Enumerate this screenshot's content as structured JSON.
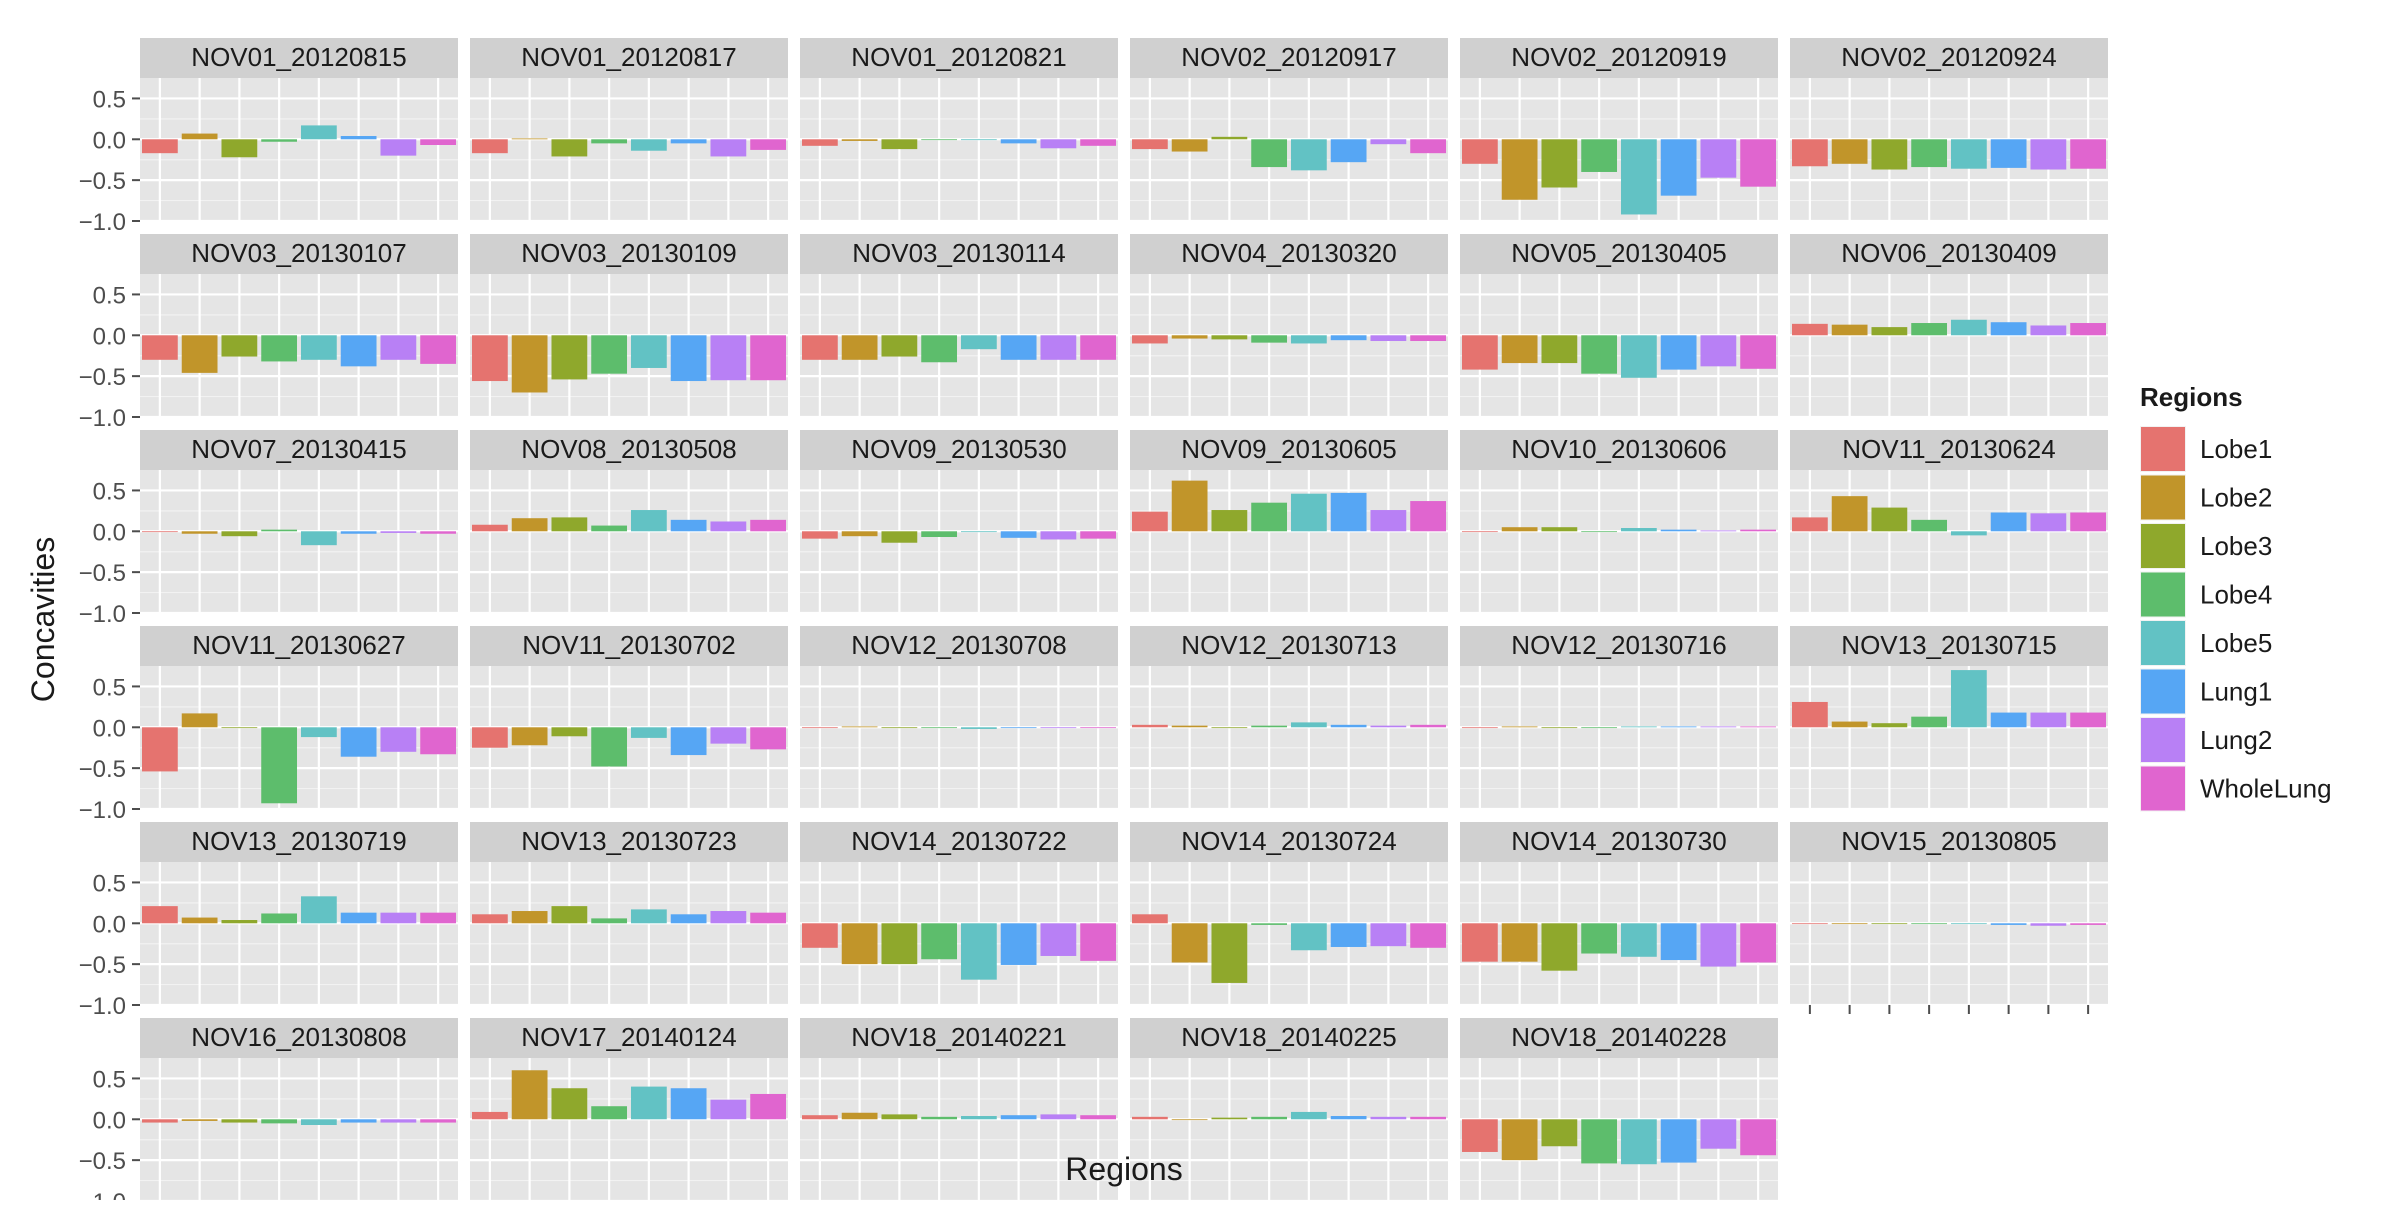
{
  "chart_data": {
    "type": "bar",
    "faceted": true,
    "xlabel": "Regions",
    "ylabel": "Concavities",
    "ylim": [
      -1.0,
      0.75
    ],
    "yticks": [
      -1.0,
      -0.5,
      0.0,
      0.5
    ],
    "ytick_labels": [
      "−1.0",
      "−0.5",
      "0.0",
      "0.5"
    ],
    "x_tick_labels_shown": false,
    "grid": true,
    "legend": {
      "title": "Regions",
      "position": "right",
      "entries": [
        "Lobe1",
        "Lobe2",
        "Lobe3",
        "Lobe4",
        "Lobe5",
        "Lung1",
        "Lung2",
        "WholeLung"
      ]
    },
    "colors": {
      "Lobe1": "#e5736f",
      "Lobe2": "#c1952a",
      "Lobe3": "#8fa82c",
      "Lobe4": "#5dbd6c",
      "Lobe5": "#62c2c4",
      "Lung1": "#56a6f4",
      "Lung2": "#b880f5",
      "WholeLung": "#e065cf",
      "panel_bg": "#e5e5e5",
      "strip_bg": "#d0d0d0",
      "grid": "#ffffff"
    },
    "categories": [
      "Lobe1",
      "Lobe2",
      "Lobe3",
      "Lobe4",
      "Lobe5",
      "Lung1",
      "Lung2",
      "WholeLung"
    ],
    "ncol": 6,
    "panels": [
      {
        "title": "NOV01_20120815",
        "values": [
          -0.17,
          0.07,
          -0.22,
          -0.03,
          0.17,
          0.04,
          -0.2,
          -0.07
        ]
      },
      {
        "title": "NOV01_20120817",
        "values": [
          -0.17,
          0.01,
          -0.21,
          -0.05,
          -0.14,
          -0.05,
          -0.21,
          -0.13
        ]
      },
      {
        "title": "NOV01_20120821",
        "values": [
          -0.08,
          -0.02,
          -0.12,
          -0.01,
          -0.01,
          -0.05,
          -0.11,
          -0.08
        ]
      },
      {
        "title": "NOV02_20120917",
        "values": [
          -0.12,
          -0.15,
          0.03,
          -0.34,
          -0.38,
          -0.28,
          -0.06,
          -0.17
        ]
      },
      {
        "title": "NOV02_20120919",
        "values": [
          -0.3,
          -0.74,
          -0.59,
          -0.4,
          -0.92,
          -0.69,
          -0.47,
          -0.58
        ]
      },
      {
        "title": "NOV02_20120924",
        "values": [
          -0.33,
          -0.3,
          -0.37,
          -0.34,
          -0.36,
          -0.35,
          -0.37,
          -0.36
        ]
      },
      {
        "title": "NOV03_20130107",
        "values": [
          -0.3,
          -0.46,
          -0.26,
          -0.32,
          -0.3,
          -0.38,
          -0.3,
          -0.35
        ]
      },
      {
        "title": "NOV03_20130109",
        "values": [
          -0.56,
          -0.7,
          -0.54,
          -0.47,
          -0.4,
          -0.56,
          -0.55,
          -0.55
        ]
      },
      {
        "title": "NOV03_20130114",
        "values": [
          -0.3,
          -0.3,
          -0.26,
          -0.33,
          -0.17,
          -0.3,
          -0.3,
          -0.3
        ]
      },
      {
        "title": "NOV04_20130320",
        "values": [
          -0.1,
          -0.04,
          -0.05,
          -0.09,
          -0.1,
          -0.06,
          -0.07,
          -0.07
        ]
      },
      {
        "title": "NOV05_20130405",
        "values": [
          -0.42,
          -0.34,
          -0.34,
          -0.47,
          -0.52,
          -0.42,
          -0.38,
          -0.41
        ]
      },
      {
        "title": "NOV06_20130409",
        "values": [
          0.14,
          0.13,
          0.1,
          0.15,
          0.19,
          0.16,
          0.12,
          0.15
        ]
      },
      {
        "title": "NOV07_20130415",
        "values": [
          -0.01,
          -0.03,
          -0.06,
          0.02,
          -0.17,
          -0.03,
          -0.02,
          -0.03
        ]
      },
      {
        "title": "NOV08_20130508",
        "values": [
          0.08,
          0.16,
          0.17,
          0.07,
          0.26,
          0.14,
          0.12,
          0.14
        ]
      },
      {
        "title": "NOV09_20130530",
        "values": [
          -0.09,
          -0.06,
          -0.14,
          -0.07,
          -0.01,
          -0.08,
          -0.1,
          -0.09
        ]
      },
      {
        "title": "NOV09_20130605",
        "values": [
          0.24,
          0.62,
          0.26,
          0.35,
          0.46,
          0.47,
          0.26,
          0.37
        ]
      },
      {
        "title": "NOV10_20130606",
        "values": [
          0.0,
          0.05,
          0.05,
          0.0,
          0.04,
          0.02,
          0.01,
          0.02
        ]
      },
      {
        "title": "NOV11_20130624",
        "values": [
          0.17,
          0.43,
          0.29,
          0.14,
          -0.05,
          0.23,
          0.22,
          0.23
        ]
      },
      {
        "title": "NOV11_20130627",
        "values": [
          -0.54,
          0.17,
          0.0,
          -0.93,
          -0.12,
          -0.36,
          -0.3,
          -0.33
        ]
      },
      {
        "title": "NOV11_20130702",
        "values": [
          -0.25,
          -0.22,
          -0.11,
          -0.48,
          -0.13,
          -0.34,
          -0.2,
          -0.27
        ]
      },
      {
        "title": "NOV12_20130708",
        "values": [
          0.0,
          0.01,
          0.0,
          0.0,
          -0.02,
          0.0,
          0.0,
          0.0
        ]
      },
      {
        "title": "NOV12_20130713",
        "values": [
          0.03,
          0.02,
          0.0,
          0.02,
          0.06,
          0.03,
          0.02,
          0.03
        ]
      },
      {
        "title": "NOV12_20130716",
        "values": [
          0.0,
          0.01,
          0.0,
          0.0,
          0.01,
          0.01,
          0.01,
          0.01
        ]
      },
      {
        "title": "NOV13_20130715",
        "values": [
          0.31,
          0.07,
          0.05,
          0.13,
          0.7,
          0.18,
          0.18,
          0.18
        ]
      },
      {
        "title": "NOV13_20130719",
        "values": [
          0.21,
          0.07,
          0.04,
          0.12,
          0.33,
          0.13,
          0.13,
          0.13
        ]
      },
      {
        "title": "NOV13_20130723",
        "values": [
          0.11,
          0.15,
          0.21,
          0.06,
          0.17,
          0.11,
          0.15,
          0.13
        ]
      },
      {
        "title": "NOV14_20130722",
        "values": [
          -0.3,
          -0.5,
          -0.5,
          -0.44,
          -0.69,
          -0.51,
          -0.4,
          -0.46
        ]
      },
      {
        "title": "NOV14_20130724",
        "values": [
          0.11,
          -0.48,
          -0.73,
          -0.02,
          -0.33,
          -0.29,
          -0.28,
          -0.3
        ]
      },
      {
        "title": "NOV14_20130730",
        "values": [
          -0.47,
          -0.47,
          -0.58,
          -0.37,
          -0.41,
          -0.45,
          -0.53,
          -0.48
        ]
      },
      {
        "title": "NOV15_20130805",
        "values": [
          0.0,
          0.0,
          0.0,
          0.0,
          0.0,
          -0.02,
          -0.03,
          -0.02
        ]
      },
      {
        "title": "NOV16_20130808",
        "values": [
          -0.04,
          -0.02,
          -0.04,
          -0.05,
          -0.07,
          -0.04,
          -0.04,
          -0.04
        ]
      },
      {
        "title": "NOV17_20140124",
        "values": [
          0.09,
          0.6,
          0.38,
          0.16,
          0.4,
          0.38,
          0.24,
          0.31
        ]
      },
      {
        "title": "NOV18_20140221",
        "values": [
          0.05,
          0.08,
          0.06,
          0.03,
          0.04,
          0.05,
          0.06,
          0.05
        ]
      },
      {
        "title": "NOV18_20140225",
        "values": [
          0.03,
          0.0,
          0.02,
          0.03,
          0.09,
          0.04,
          0.03,
          0.03
        ]
      },
      {
        "title": "NOV18_20140228",
        "values": [
          -0.4,
          -0.5,
          -0.33,
          -0.54,
          -0.55,
          -0.53,
          -0.36,
          -0.44
        ]
      }
    ]
  }
}
